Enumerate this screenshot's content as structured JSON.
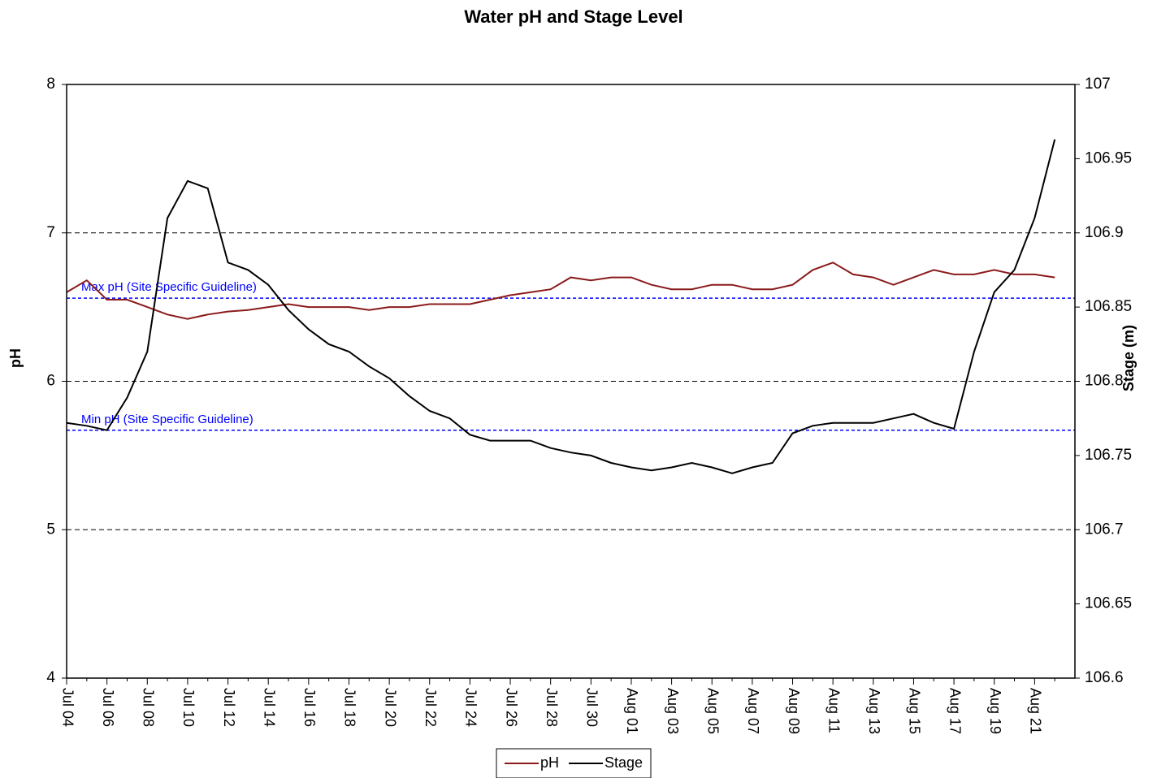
{
  "chart_data": {
    "type": "line",
    "title": "Water pH and Stage Level",
    "y_label": "pH",
    "y2_label": "Stage (m)",
    "categories": [
      "Jul 04",
      null,
      "Jul 06",
      null,
      "Jul 08",
      null,
      "Jul 10",
      null,
      "Jul 12",
      null,
      "Jul 14",
      null,
      "Jul 16",
      null,
      "Jul 18",
      null,
      "Jul 20",
      null,
      "Jul 22",
      null,
      "Jul 24",
      null,
      "Jul 26",
      null,
      "Jul 28",
      null,
      "Jul 30",
      null,
      "Aug 01",
      null,
      "Aug 03",
      null,
      "Aug 05",
      null,
      "Aug 07",
      null,
      "Aug 09",
      null,
      "Aug 11",
      null,
      "Aug 13",
      null,
      "Aug 15",
      null,
      "Aug 17",
      null,
      "Aug 19",
      null,
      "Aug 21",
      null
    ],
    "series": [
      {
        "name": "pH",
        "color": "#8b1a1a",
        "axis": "y",
        "values": [
          6.6,
          6.68,
          6.55,
          6.55,
          6.5,
          6.45,
          6.42,
          6.45,
          6.47,
          6.48,
          6.5,
          6.52,
          6.5,
          6.5,
          6.5,
          6.48,
          6.5,
          6.5,
          6.52,
          6.52,
          6.52,
          6.55,
          6.58,
          6.6,
          6.62,
          6.7,
          6.68,
          6.7,
          6.7,
          6.65,
          6.62,
          6.62,
          6.65,
          6.65,
          6.62,
          6.62,
          6.65,
          6.75,
          6.8,
          6.72,
          6.7,
          6.65,
          6.7,
          6.75,
          6.72,
          6.72,
          6.75,
          6.72,
          6.72,
          6.7
        ]
      },
      {
        "name": "Stage",
        "color": "#000000",
        "axis": "y2",
        "values": [
          106.772,
          106.77,
          106.767,
          106.789,
          106.82,
          106.91,
          106.935,
          106.93,
          106.88,
          106.875,
          106.865,
          106.848,
          106.835,
          106.825,
          106.82,
          106.81,
          106.802,
          106.79,
          106.78,
          106.775,
          106.764,
          106.76,
          106.76,
          106.76,
          106.755,
          106.752,
          106.75,
          106.745,
          106.742,
          106.74,
          106.742,
          106.745,
          106.742,
          106.738,
          106.742,
          106.745,
          106.765,
          106.77,
          106.772,
          106.772,
          106.772,
          106.775,
          106.778,
          106.772,
          106.768,
          106.82,
          106.86,
          106.875,
          106.91,
          106.963
        ]
      }
    ],
    "reference_lines": [
      {
        "label": "Max pH (Site Specific Guideline)",
        "value": 6.56,
        "color": "#0000ff"
      },
      {
        "label": "Min pH (Site Specific Guideline)",
        "value": 5.67,
        "color": "#0000ff"
      }
    ],
    "ylim": [
      4,
      8
    ],
    "yticks": [
      4,
      5,
      6,
      7,
      8
    ],
    "y2lim": [
      106.6,
      107
    ],
    "y2ticks": [
      106.6,
      106.65,
      106.7,
      106.75,
      106.8,
      106.85,
      106.9,
      106.95,
      107
    ],
    "grid": true,
    "legend": "bottom"
  }
}
